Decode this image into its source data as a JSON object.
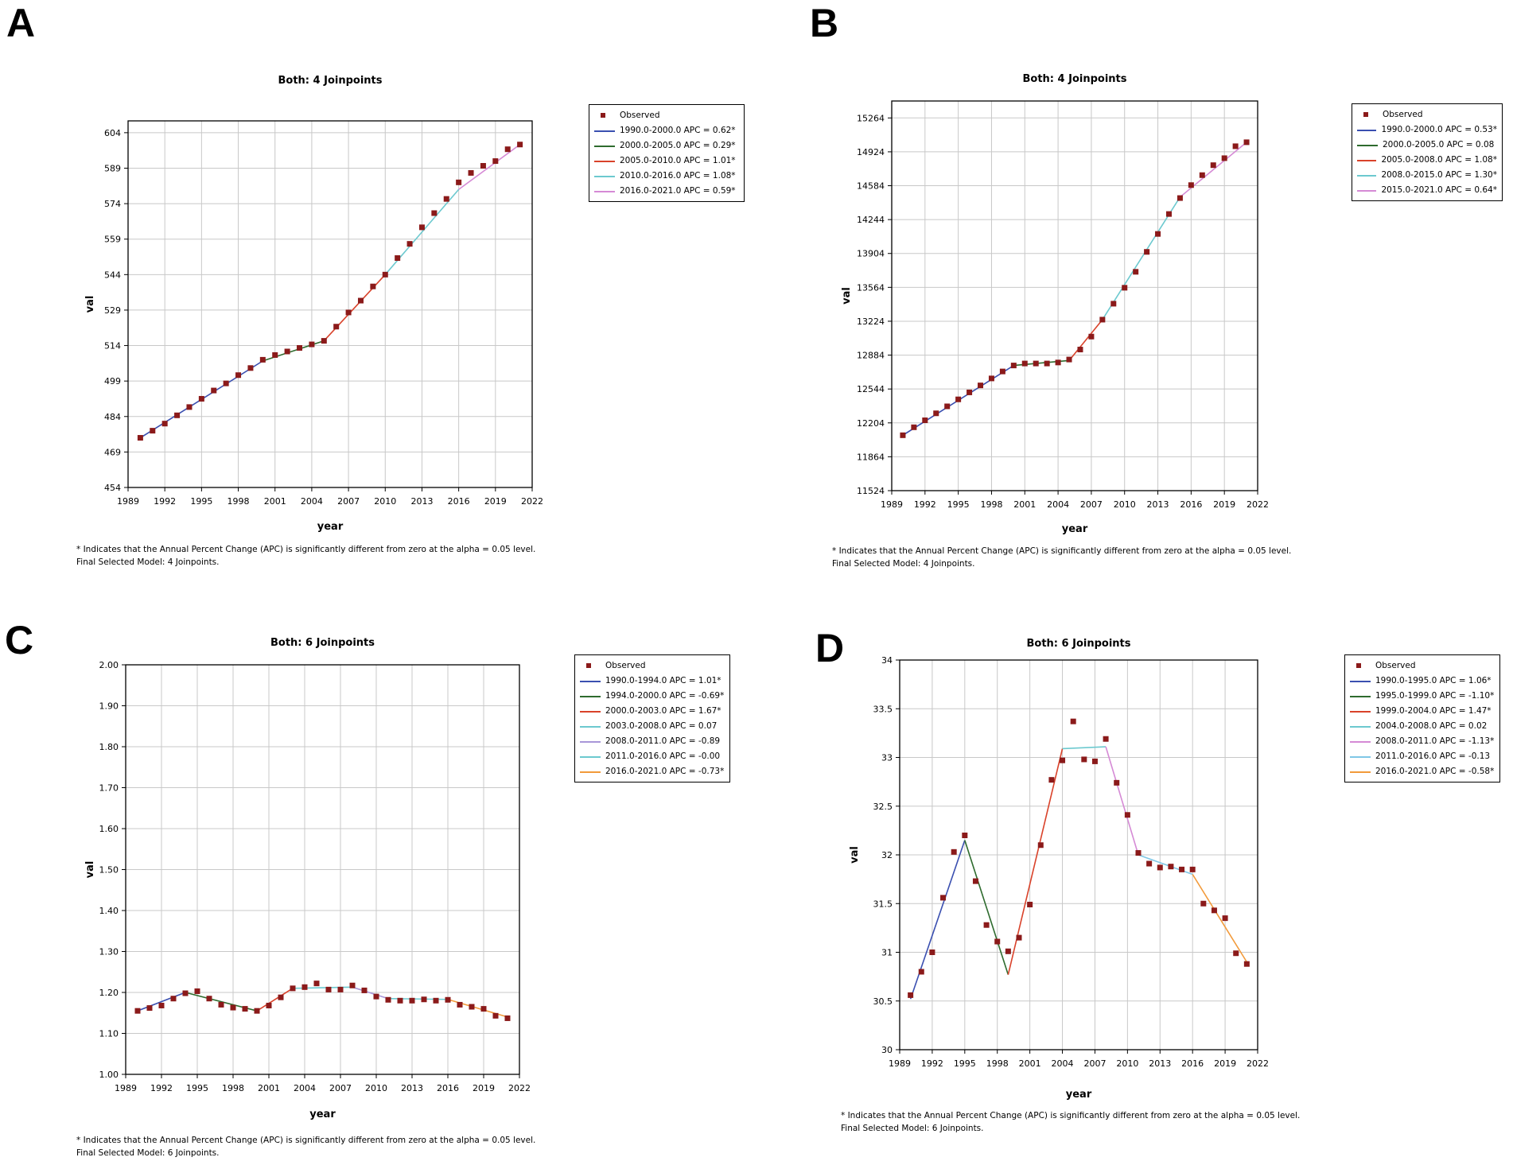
{
  "figure": {
    "footnote_line1": "* Indicates that the Annual Percent Change (APC) is significantly different from zero at the alpha = 0.05 level.",
    "marker_color": "#8b1a1a",
    "colors": {
      "blue": "#3a4fb0",
      "green": "#2e6b2e",
      "red": "#d9422a",
      "teal": "#6cc9cf",
      "pink": "#d58ad5",
      "violet": "#a896d8",
      "orange": "#f29a3a",
      "skyblue": "#7fc7e6"
    }
  },
  "chart_data": [
    {
      "panel": "A",
      "type": "line",
      "title": "Both: 4 Joinpoints",
      "xlabel": "year",
      "ylabel": "val",
      "xlim": [
        1989,
        2022
      ],
      "xticks": [
        1989,
        1992,
        1995,
        1998,
        2001,
        2004,
        2007,
        2010,
        2013,
        2016,
        2019,
        2022
      ],
      "ylim": [
        454,
        609
      ],
      "yticks": [
        454,
        469,
        484,
        499,
        514,
        529,
        544,
        559,
        574,
        589,
        604
      ],
      "legend_observed": "Observed",
      "observed": {
        "x": [
          1990,
          1991,
          1992,
          1993,
          1994,
          1995,
          1996,
          1997,
          1998,
          1999,
          2000,
          2001,
          2002,
          2003,
          2004,
          2005,
          2006,
          2007,
          2008,
          2009,
          2010,
          2011,
          2012,
          2013,
          2014,
          2015,
          2016,
          2017,
          2018,
          2019,
          2020,
          2021
        ],
        "y": [
          475,
          478,
          481,
          484.5,
          488,
          491.5,
          495,
          498,
          501.5,
          504.5,
          508,
          510,
          511.5,
          513,
          514.5,
          516,
          522,
          528,
          533,
          539,
          544,
          551,
          557,
          564,
          570,
          576,
          583,
          587,
          590,
          592,
          597,
          599
        ]
      },
      "series": [
        {
          "name": "1990.0-2000.0 APC = 0.62*",
          "color": "blue",
          "x": [
            1990,
            2000
          ],
          "y": [
            475,
            507.5
          ]
        },
        {
          "name": "2000.0-2005.0 APC = 0.29*",
          "color": "green",
          "x": [
            2000,
            2005
          ],
          "y": [
            507.5,
            516
          ]
        },
        {
          "name": "2005.0-2010.0 APC = 1.01*",
          "color": "red",
          "x": [
            2005,
            2010
          ],
          "y": [
            516,
            544
          ]
        },
        {
          "name": "2010.0-2016.0 APC = 1.08*",
          "color": "teal",
          "x": [
            2010,
            2016
          ],
          "y": [
            544,
            580
          ]
        },
        {
          "name": "2016.0-2021.0 APC = 0.59*",
          "color": "pink",
          "x": [
            2016,
            2021
          ],
          "y": [
            580,
            599
          ]
        }
      ],
      "footnote2": "Final Selected Model: 4 Joinpoints."
    },
    {
      "panel": "B",
      "type": "line",
      "title": "Both: 4 Joinpoints",
      "xlabel": "year",
      "ylabel": "val",
      "xlim": [
        1989,
        2022
      ],
      "xticks": [
        1989,
        1992,
        1995,
        1998,
        2001,
        2004,
        2007,
        2010,
        2013,
        2016,
        2019,
        2022
      ],
      "ylim": [
        11524,
        15434
      ],
      "yticks": [
        11524,
        11864,
        12204,
        12544,
        12884,
        13224,
        13564,
        13904,
        14244,
        14584,
        14924,
        15264
      ],
      "legend_observed": "Observed",
      "observed": {
        "x": [
          1990,
          1991,
          1992,
          1993,
          1994,
          1995,
          1996,
          1997,
          1998,
          1999,
          2000,
          2001,
          2002,
          2003,
          2004,
          2005,
          2006,
          2007,
          2008,
          2009,
          2010,
          2011,
          2012,
          2013,
          2014,
          2015,
          2016,
          2017,
          2018,
          2019,
          2020,
          2021
        ],
        "y": [
          12080,
          12160,
          12230,
          12300,
          12370,
          12440,
          12510,
          12580,
          12650,
          12720,
          12780,
          12800,
          12800,
          12800,
          12810,
          12840,
          12940,
          13070,
          13240,
          13400,
          13560,
          13720,
          13920,
          14100,
          14300,
          14460,
          14590,
          14690,
          14790,
          14860,
          14980,
          15020
        ]
      },
      "series": [
        {
          "name": "1990.0-2000.0 APC = 0.53*",
          "color": "blue",
          "x": [
            1990,
            2000
          ],
          "y": [
            12080,
            12780
          ]
        },
        {
          "name": "2000.0-2005.0 APC = 0.08",
          "color": "green",
          "x": [
            2000,
            2005
          ],
          "y": [
            12780,
            12830
          ]
        },
        {
          "name": "2005.0-2008.0 APC = 1.08*",
          "color": "red",
          "x": [
            2005,
            2008
          ],
          "y": [
            12830,
            13240
          ]
        },
        {
          "name": "2008.0-2015.0 APC = 1.30*",
          "color": "teal",
          "x": [
            2008,
            2015
          ],
          "y": [
            13240,
            14470
          ]
        },
        {
          "name": "2015.0-2021.0 APC = 0.64*",
          "color": "pink",
          "x": [
            2015,
            2021
          ],
          "y": [
            14470,
            15020
          ]
        }
      ],
      "footnote2": "Final Selected Model: 4 Joinpoints."
    },
    {
      "panel": "C",
      "type": "line",
      "title": "Both: 6 Joinpoints",
      "xlabel": "year",
      "ylabel": "val",
      "xlim": [
        1989,
        2022
      ],
      "xticks": [
        1989,
        1992,
        1995,
        1998,
        2001,
        2004,
        2007,
        2010,
        2013,
        2016,
        2019,
        2022
      ],
      "ylim": [
        1.0,
        2.0
      ],
      "yticks": [
        "1.00",
        "1.10",
        "1.20",
        "1.30",
        "1.40",
        "1.50",
        "1.60",
        "1.70",
        "1.80",
        "1.90",
        "2.00"
      ],
      "legend_observed": "Observed",
      "observed": {
        "x": [
          1990,
          1991,
          1992,
          1993,
          1994,
          1995,
          1996,
          1997,
          1998,
          1999,
          2000,
          2001,
          2002,
          2003,
          2004,
          2005,
          2006,
          2007,
          2008,
          2009,
          2010,
          2011,
          2012,
          2013,
          2014,
          2015,
          2016,
          2017,
          2018,
          2019,
          2020,
          2021
        ],
        "y": [
          1.155,
          1.162,
          1.168,
          1.185,
          1.198,
          1.203,
          1.185,
          1.17,
          1.163,
          1.16,
          1.155,
          1.168,
          1.188,
          1.21,
          1.213,
          1.222,
          1.207,
          1.207,
          1.217,
          1.205,
          1.19,
          1.182,
          1.18,
          1.18,
          1.183,
          1.18,
          1.182,
          1.17,
          1.165,
          1.16,
          1.143,
          1.137
        ]
      },
      "series": [
        {
          "name": "1990.0-1994.0 APC = 1.01*",
          "color": "blue",
          "x": [
            1990,
            1994
          ],
          "y": [
            1.155,
            1.2
          ]
        },
        {
          "name": "1994.0-2000.0 APC = -0.69*",
          "color": "green",
          "x": [
            1994,
            2000
          ],
          "y": [
            1.2,
            1.155
          ]
        },
        {
          "name": "2000.0-2003.0 APC = 1.67*",
          "color": "red",
          "x": [
            2000,
            2003
          ],
          "y": [
            1.155,
            1.21
          ]
        },
        {
          "name": "2003.0-2008.0 APC = 0.07",
          "color": "teal",
          "x": [
            2003,
            2008
          ],
          "y": [
            1.21,
            1.213
          ]
        },
        {
          "name": "2008.0-2011.0 APC = -0.89",
          "color": "violet",
          "x": [
            2008,
            2011
          ],
          "y": [
            1.213,
            1.185
          ]
        },
        {
          "name": "2011.0-2016.0 APC = -0.00",
          "color": "teal",
          "x": [
            2011,
            2016
          ],
          "y": [
            1.185,
            1.183
          ]
        },
        {
          "name": "2016.0-2021.0 APC = -0.73*",
          "color": "orange",
          "x": [
            2016,
            2021
          ],
          "y": [
            1.183,
            1.14
          ]
        }
      ],
      "footnote2": "Final Selected Model: 6 Joinpoints."
    },
    {
      "panel": "D",
      "type": "line",
      "title": "Both: 6 Joinpoints",
      "xlabel": "year",
      "ylabel": "val",
      "xlim": [
        1989,
        2022
      ],
      "xticks": [
        1989,
        1992,
        1995,
        1998,
        2001,
        2004,
        2007,
        2010,
        2013,
        2016,
        2019,
        2022
      ],
      "ylim": [
        30,
        34
      ],
      "yticks": [
        "30",
        "30.5",
        "31",
        "31.5",
        "32",
        "32.5",
        "33",
        "33.5",
        "34"
      ],
      "legend_observed": "Observed",
      "observed": {
        "x": [
          1990,
          1991,
          1992,
          1993,
          1994,
          1995,
          1996,
          1997,
          1998,
          1999,
          2000,
          2001,
          2002,
          2003,
          2004,
          2005,
          2006,
          2007,
          2008,
          2009,
          2010,
          2011,
          2012,
          2013,
          2014,
          2015,
          2016,
          2017,
          2018,
          2019,
          2020,
          2021
        ],
        "y": [
          30.56,
          30.8,
          31.0,
          31.56,
          32.03,
          32.2,
          31.73,
          31.28,
          31.11,
          31.01,
          31.15,
          31.49,
          32.1,
          32.77,
          32.97,
          33.37,
          32.98,
          32.96,
          33.19,
          32.74,
          32.41,
          32.02,
          31.91,
          31.87,
          31.88,
          31.85,
          31.85,
          31.5,
          31.43,
          31.35,
          30.99,
          30.88
        ]
      },
      "series": [
        {
          "name": "1990.0-1995.0 APC = 1.06*",
          "color": "blue",
          "x": [
            1990,
            1995
          ],
          "y": [
            30.52,
            32.15
          ]
        },
        {
          "name": "1995.0-1999.0 APC = -1.10*",
          "color": "green",
          "x": [
            1995,
            1999
          ],
          "y": [
            32.15,
            30.77
          ]
        },
        {
          "name": "1999.0-2004.0 APC = 1.47*",
          "color": "red",
          "x": [
            1999,
            2004
          ],
          "y": [
            30.77,
            33.09
          ]
        },
        {
          "name": "2004.0-2008.0 APC = 0.02",
          "color": "teal",
          "x": [
            2004,
            2008
          ],
          "y": [
            33.09,
            33.11
          ]
        },
        {
          "name": "2008.0-2011.0 APC = -1.13*",
          "color": "pink",
          "x": [
            2008,
            2011
          ],
          "y": [
            33.11,
            32.0
          ]
        },
        {
          "name": "2011.0-2016.0 APC = -0.13",
          "color": "skyblue",
          "x": [
            2011,
            2016
          ],
          "y": [
            32.0,
            31.8
          ]
        },
        {
          "name": "2016.0-2021.0 APC = -0.58*",
          "color": "orange",
          "x": [
            2016,
            2021
          ],
          "y": [
            31.8,
            30.9
          ]
        }
      ],
      "footnote2": "Final Selected Model: 6 Joinpoints."
    }
  ]
}
